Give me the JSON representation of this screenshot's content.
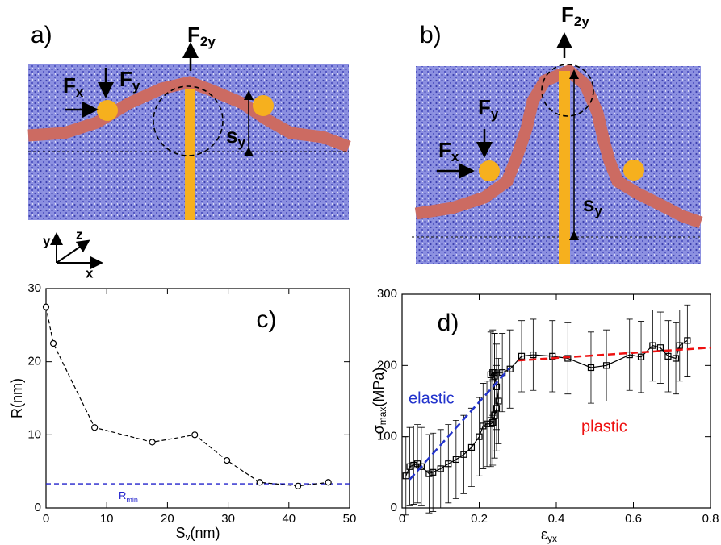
{
  "panel_a": {
    "label": "a)",
    "force_x": [
      "F",
      "x"
    ],
    "force_y": [
      "F",
      "y"
    ],
    "force_2y": [
      "F",
      "2y"
    ],
    "displacement": [
      "s",
      "y"
    ],
    "axes": [
      "y",
      "z",
      "x"
    ]
  },
  "panel_b": {
    "label": "b)",
    "force_x": [
      "F",
      "x"
    ],
    "force_y": [
      "F",
      "y"
    ],
    "force_2y": [
      "F",
      "2y"
    ],
    "displacement": [
      "s",
      "y"
    ]
  },
  "chart_data": [
    {
      "type": "line",
      "title": "c)",
      "xlabel_parts": [
        "S",
        "v",
        "(nm)"
      ],
      "ylabel": "R(nm)",
      "x": [
        0,
        1.2,
        8,
        17.5,
        24.5,
        29.8,
        35.2,
        41.5,
        46.5
      ],
      "series": [
        {
          "color": "#000000",
          "values": [
            27.5,
            22.5,
            11,
            9,
            10,
            6.5,
            3.5,
            3,
            3.5
          ]
        }
      ],
      "reference_line": {
        "value": 3.3,
        "label_parts": [
          "R",
          "min"
        ],
        "color": "#2222cc"
      },
      "xlim": [
        0,
        50
      ],
      "xticks": [
        0,
        10,
        20,
        30,
        40,
        50
      ],
      "ylim": [
        0,
        30
      ],
      "yticks": [
        0,
        10,
        20,
        30
      ]
    },
    {
      "type": "line",
      "title": "d)",
      "xlabel_parts": [
        "ε",
        "yx"
      ],
      "ylabel_parts": [
        "σ",
        "max",
        "(MPa)"
      ],
      "x": [
        0.01,
        0.02,
        0.03,
        0.04,
        0.05,
        0.07,
        0.08,
        0.1,
        0.12,
        0.14,
        0.16,
        0.18,
        0.2,
        0.21,
        0.22,
        0.23,
        0.235,
        0.24,
        0.245,
        0.25,
        0.245,
        0.24,
        0.235,
        0.23,
        0.24,
        0.26,
        0.28,
        0.31,
        0.34,
        0.39,
        0.43,
        0.49,
        0.53,
        0.59,
        0.62,
        0.65,
        0.67,
        0.69,
        0.71,
        0.72,
        0.74
      ],
      "series": [
        {
          "color": "#000000",
          "values": [
            45,
            58,
            60,
            62,
            58,
            48,
            50,
            55,
            62,
            68,
            75,
            85,
            100,
            115,
            118,
            118,
            120,
            130,
            140,
            150,
            170,
            185,
            190,
            187,
            190,
            190,
            195,
            213,
            215,
            213,
            210,
            197,
            200,
            215,
            212,
            228,
            225,
            213,
            210,
            228,
            235
          ],
          "errors": [
            55,
            55,
            55,
            55,
            55,
            55,
            55,
            55,
            55,
            55,
            55,
            55,
            55,
            60,
            60,
            60,
            60,
            60,
            60,
            60,
            60,
            60,
            60,
            60,
            55,
            55,
            55,
            50,
            50,
            50,
            50,
            50,
            50,
            50,
            50,
            50,
            50,
            50,
            50,
            50,
            50
          ]
        }
      ],
      "fit_lines": [
        {
          "name": "elastic",
          "color": "#2233cc",
          "x": [
            0.02,
            0.28
          ],
          "values": [
            40,
            197
          ]
        },
        {
          "name": "plastic",
          "color": "#ee1111",
          "x": [
            0.3,
            0.8
          ],
          "values": [
            207,
            225
          ]
        }
      ],
      "xlim": [
        0,
        0.8
      ],
      "xticks": [
        0,
        0.2,
        0.4,
        0.6,
        0.8
      ],
      "ylim": [
        0,
        300
      ],
      "yticks": [
        0,
        100,
        200,
        300
      ]
    }
  ]
}
